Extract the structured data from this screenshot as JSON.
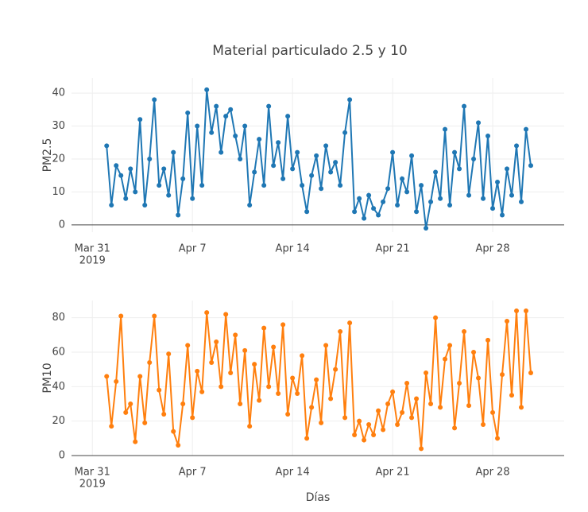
{
  "title": "Material particulado 2.5 y 10",
  "chart_data": [
    {
      "type": "line",
      "ylabel": "PM2.5",
      "xlim": [
        "2019-03-29 13:00",
        "2019-05-03 00:00"
      ],
      "xticks": [
        {
          "value": "2019-03-31",
          "label": "Mar 31"
        },
        {
          "value": "2019-04-07",
          "label": "Apr 7"
        },
        {
          "value": "2019-04-14",
          "label": "Apr 14"
        },
        {
          "value": "2019-04-21",
          "label": "Apr 21"
        },
        {
          "value": "2019-04-28",
          "label": "Apr 28"
        }
      ],
      "x_year": "2019",
      "ylim": [
        -2.2,
        44.6
      ],
      "yticks": [
        0,
        10,
        20,
        30,
        40
      ],
      "grid": true,
      "x": [
        "2019-04-01 00:00",
        "2019-04-01 08:00",
        "2019-04-01 16:00",
        "2019-04-02 00:00",
        "2019-04-02 08:00",
        "2019-04-02 16:00",
        "2019-04-03 00:00",
        "2019-04-03 08:00",
        "2019-04-03 16:00",
        "2019-04-04 00:00",
        "2019-04-04 08:00",
        "2019-04-04 16:00",
        "2019-04-05 00:00",
        "2019-04-05 08:00",
        "2019-04-05 16:00",
        "2019-04-06 00:00",
        "2019-04-06 08:00",
        "2019-04-06 16:00",
        "2019-04-07 00:00",
        "2019-04-07 08:00",
        "2019-04-07 16:00",
        "2019-04-08 00:00",
        "2019-04-08 08:00",
        "2019-04-08 16:00",
        "2019-04-09 00:00",
        "2019-04-09 08:00",
        "2019-04-09 16:00",
        "2019-04-10 00:00",
        "2019-04-10 08:00",
        "2019-04-10 16:00",
        "2019-04-11 00:00",
        "2019-04-11 08:00",
        "2019-04-11 16:00",
        "2019-04-12 00:00",
        "2019-04-12 08:00",
        "2019-04-12 16:00",
        "2019-04-13 00:00",
        "2019-04-13 08:00",
        "2019-04-13 16:00",
        "2019-04-14 00:00",
        "2019-04-14 08:00",
        "2019-04-14 16:00",
        "2019-04-15 00:00",
        "2019-04-15 08:00",
        "2019-04-15 16:00",
        "2019-04-16 00:00",
        "2019-04-16 08:00",
        "2019-04-16 16:00",
        "2019-04-17 00:00",
        "2019-04-17 08:00",
        "2019-04-17 16:00",
        "2019-04-18 00:00",
        "2019-04-18 08:00",
        "2019-04-18 16:00",
        "2019-04-19 00:00",
        "2019-04-19 08:00",
        "2019-04-19 16:00",
        "2019-04-20 00:00",
        "2019-04-20 08:00",
        "2019-04-20 16:00",
        "2019-04-21 00:00",
        "2019-04-21 08:00",
        "2019-04-21 16:00",
        "2019-04-22 00:00",
        "2019-04-22 08:00",
        "2019-04-22 16:00",
        "2019-04-23 00:00",
        "2019-04-23 08:00",
        "2019-04-23 16:00",
        "2019-04-24 00:00",
        "2019-04-24 08:00",
        "2019-04-24 16:00",
        "2019-04-25 00:00",
        "2019-04-25 08:00",
        "2019-04-25 16:00",
        "2019-04-26 00:00",
        "2019-04-26 08:00",
        "2019-04-26 16:00",
        "2019-04-27 00:00",
        "2019-04-27 08:00",
        "2019-04-27 16:00",
        "2019-04-28 00:00",
        "2019-04-28 08:00",
        "2019-04-28 16:00",
        "2019-04-29 00:00",
        "2019-04-29 08:00",
        "2019-04-29 16:00",
        "2019-04-30 00:00",
        "2019-04-30 08:00",
        "2019-04-30 16:00"
      ],
      "series": [
        {
          "color": "#1f77b4",
          "values": [
            24,
            6,
            18,
            15,
            8,
            17,
            10,
            32,
            6,
            20,
            38,
            12,
            17,
            9,
            22,
            3,
            14,
            34,
            8,
            30,
            12,
            41,
            28,
            36,
            22,
            33,
            35,
            27,
            20,
            30,
            6,
            16,
            26,
            12,
            36,
            18,
            25,
            14,
            33,
            17,
            22,
            12,
            4,
            15,
            21,
            11,
            24,
            16,
            19,
            12,
            28,
            38,
            4,
            8,
            2,
            9,
            5,
            3,
            7,
            11,
            22,
            6,
            14,
            10,
            21,
            4,
            12,
            -1,
            7,
            16,
            8,
            29,
            6,
            22,
            17,
            36,
            9,
            20,
            31,
            8,
            27,
            5,
            13,
            3,
            17,
            9,
            24,
            7,
            29,
            18
          ]
        }
      ]
    },
    {
      "type": "line",
      "ylabel": "PM10",
      "xlabel": "Días",
      "xlim": [
        "2019-03-29 13:00",
        "2019-05-03 00:00"
      ],
      "xticks": [
        {
          "value": "2019-03-31",
          "label": "Mar 31"
        },
        {
          "value": "2019-04-07",
          "label": "Apr 7"
        },
        {
          "value": "2019-04-14",
          "label": "Apr 14"
        },
        {
          "value": "2019-04-21",
          "label": "Apr 21"
        },
        {
          "value": "2019-04-28",
          "label": "Apr 28"
        }
      ],
      "x_year": "2019",
      "ylim": [
        0,
        90
      ],
      "yticks": [
        0,
        20,
        40,
        60,
        80
      ],
      "grid": true,
      "x": [
        "2019-04-01 00:00",
        "2019-04-01 08:00",
        "2019-04-01 16:00",
        "2019-04-02 00:00",
        "2019-04-02 08:00",
        "2019-04-02 16:00",
        "2019-04-03 00:00",
        "2019-04-03 08:00",
        "2019-04-03 16:00",
        "2019-04-04 00:00",
        "2019-04-04 08:00",
        "2019-04-04 16:00",
        "2019-04-05 00:00",
        "2019-04-05 08:00",
        "2019-04-05 16:00",
        "2019-04-06 00:00",
        "2019-04-06 08:00",
        "2019-04-06 16:00",
        "2019-04-07 00:00",
        "2019-04-07 08:00",
        "2019-04-07 16:00",
        "2019-04-08 00:00",
        "2019-04-08 08:00",
        "2019-04-08 16:00",
        "2019-04-09 00:00",
        "2019-04-09 08:00",
        "2019-04-09 16:00",
        "2019-04-10 00:00",
        "2019-04-10 08:00",
        "2019-04-10 16:00",
        "2019-04-11 00:00",
        "2019-04-11 08:00",
        "2019-04-11 16:00",
        "2019-04-12 00:00",
        "2019-04-12 08:00",
        "2019-04-12 16:00",
        "2019-04-13 00:00",
        "2019-04-13 08:00",
        "2019-04-13 16:00",
        "2019-04-14 00:00",
        "2019-04-14 08:00",
        "2019-04-14 16:00",
        "2019-04-15 00:00",
        "2019-04-15 08:00",
        "2019-04-15 16:00",
        "2019-04-16 00:00",
        "2019-04-16 08:00",
        "2019-04-16 16:00",
        "2019-04-17 00:00",
        "2019-04-17 08:00",
        "2019-04-17 16:00",
        "2019-04-18 00:00",
        "2019-04-18 08:00",
        "2019-04-18 16:00",
        "2019-04-19 00:00",
        "2019-04-19 08:00",
        "2019-04-19 16:00",
        "2019-04-20 00:00",
        "2019-04-20 08:00",
        "2019-04-20 16:00",
        "2019-04-21 00:00",
        "2019-04-21 08:00",
        "2019-04-21 16:00",
        "2019-04-22 00:00",
        "2019-04-22 08:00",
        "2019-04-22 16:00",
        "2019-04-23 00:00",
        "2019-04-23 08:00",
        "2019-04-23 16:00",
        "2019-04-24 00:00",
        "2019-04-24 08:00",
        "2019-04-24 16:00",
        "2019-04-25 00:00",
        "2019-04-25 08:00",
        "2019-04-25 16:00",
        "2019-04-26 00:00",
        "2019-04-26 08:00",
        "2019-04-26 16:00",
        "2019-04-27 00:00",
        "2019-04-27 08:00",
        "2019-04-27 16:00",
        "2019-04-28 00:00",
        "2019-04-28 08:00",
        "2019-04-28 16:00",
        "2019-04-29 00:00",
        "2019-04-29 08:00",
        "2019-04-29 16:00",
        "2019-04-30 00:00",
        "2019-04-30 08:00",
        "2019-04-30 16:00"
      ],
      "series": [
        {
          "color": "#ff7f0e",
          "values": [
            46,
            17,
            43,
            81,
            25,
            30,
            8,
            46,
            19,
            54,
            81,
            38,
            24,
            59,
            14,
            6,
            30,
            64,
            22,
            49,
            37,
            83,
            54,
            66,
            40,
            82,
            48,
            70,
            30,
            61,
            17,
            53,
            32,
            74,
            40,
            63,
            36,
            76,
            24,
            45,
            36,
            58,
            10,
            28,
            44,
            19,
            64,
            33,
            50,
            72,
            22,
            77,
            12,
            20,
            9,
            18,
            12,
            26,
            15,
            30,
            37,
            18,
            25,
            42,
            22,
            33,
            4,
            48,
            30,
            80,
            28,
            56,
            64,
            16,
            42,
            72,
            29,
            60,
            45,
            18,
            67,
            25,
            10,
            47,
            78,
            35,
            84,
            28,
            84,
            48
          ]
        }
      ]
    }
  ]
}
